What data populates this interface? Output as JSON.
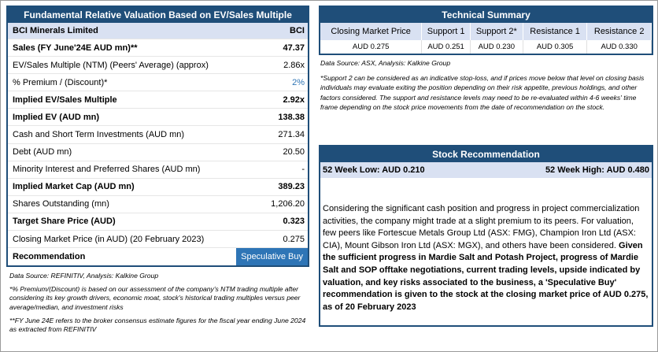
{
  "valuation": {
    "title": "Fundamental Relative Valuation Based on EV/Sales Multiple",
    "company": "BCI Minerals Limited",
    "ticker": "BCI",
    "rows": [
      {
        "label": "Sales (FY June'24E AUD mn)**",
        "value": "47.37"
      },
      {
        "label": "EV/Sales Multiple (NTM)  (Peers' Average) (approx)",
        "value": "2.86x"
      },
      {
        "label": "% Premium / (Discount)*",
        "value": "2%"
      },
      {
        "label": "Implied EV/Sales Multiple",
        "value": "2.92x"
      },
      {
        "label": "Implied EV (AUD mn)",
        "value": "138.38"
      },
      {
        "label": "Cash and Short Term Investments (AUD mn)",
        "value": "271.34"
      },
      {
        "label": "Debt (AUD mn)",
        "value": "20.50"
      },
      {
        "label": "Minority Interest and Preferred Shares (AUD mn)",
        "value": "-"
      },
      {
        "label": "Implied Market Cap (AUD mn)",
        "value": "389.23"
      },
      {
        "label": "Shares Outstanding (mn)",
        "value": "1,206.20"
      },
      {
        "label": "Target Share Price (AUD)",
        "value": "0.323"
      },
      {
        "label": "Closing Market Price (in AUD) (20 February 2023)",
        "value": "0.275"
      }
    ],
    "recommendation_label": "Recommendation",
    "recommendation_value": "Speculative Buy",
    "source": "Data Source: REFINITIV, Analysis: Kalkine Group",
    "note1": "*% Premium/(Discount) is based on our assessment of the company's NTM trading multiple after considering its key growth drivers, economic moat, stock's historical trading multiples versus peer average/median, and investment risks",
    "note2": "**FY June 24E refers to the broker consensus estimate figures for the fiscal year ending June 2024  as extracted from REFINITIV"
  },
  "technical": {
    "title": "Technical Summary",
    "headers": [
      "Closing Market Price",
      "Support 1",
      "Support 2*",
      "Resistance 1",
      "Resistance 2"
    ],
    "values": [
      "AUD 0.275",
      "AUD 0.251",
      "AUD 0.230",
      "AUD 0.305",
      "AUD 0.330"
    ],
    "source": "Data Source: ASX, Analysis: Kalkine Group",
    "note": "*Support 2 can be considered as an indicative stop-loss, and if prices move below that level on closing basis individuals may evaluate exiting the position depending on their risk appetite, previous holdings, and other factors considered. The support and resistance levels may need to be re-evaluated within 4-6 weeks' time frame depending on the stock price movements from the date of recommendation on the stock."
  },
  "stock_rec": {
    "title": "Stock Recommendation",
    "low": "52 Week Low: AUD 0.210",
    "high": "52 Week High: AUD 0.480",
    "text_normal": "Considering the significant cash position and progress in project commercialization activities, the company might trade at a slight premium to its peers. For valuation, few peers like Fortescue Metals Group Ltd (ASX: FMG), Champion Iron Ltd (ASX: CIA), Mount Gibson Iron Ltd (ASX: MGX), and others have been considered. ",
    "text_bold": "Given the sufficient progress in Mardie Salt and Potash Project, progress of Mardie Salt and SOP offtake negotiations, current trading levels, upside indicated by valuation, and key risks associated to the business, a 'Speculative Buy' recommendation is given to the stock at the closing market price of AUD 0.275, as of 20 February 2023"
  },
  "colors": {
    "header_bg": "#1f4e79",
    "subheader_bg": "#d9e1f2",
    "accent": "#2e75b6"
  }
}
